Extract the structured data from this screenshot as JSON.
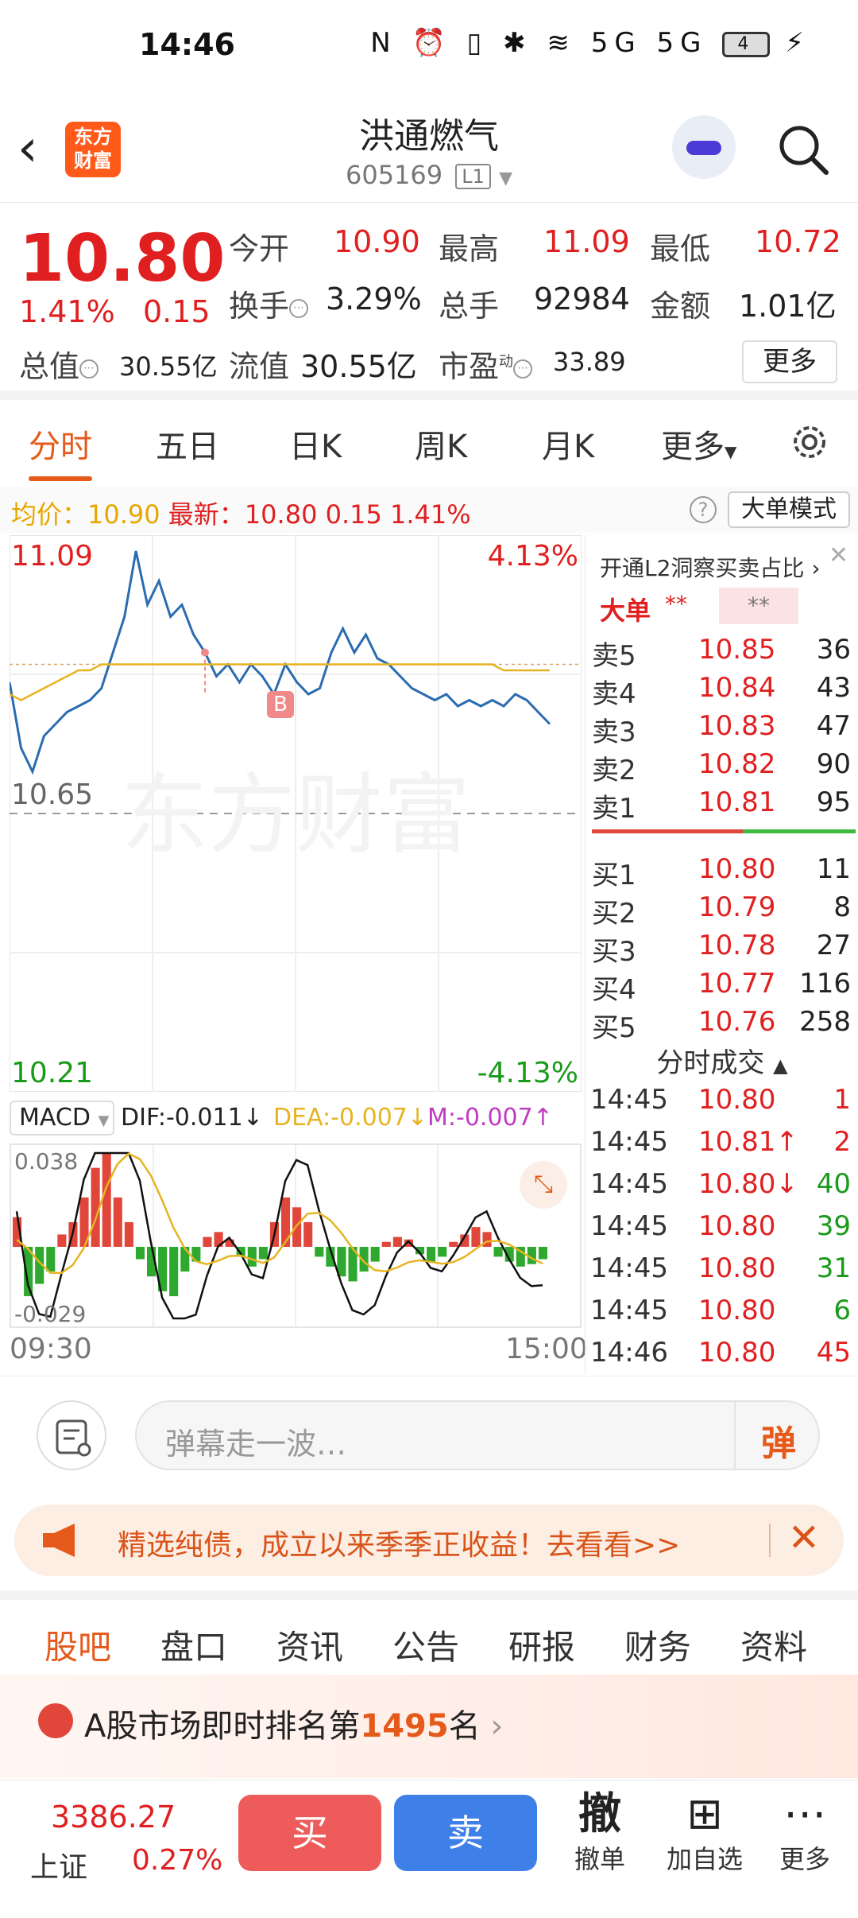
{
  "status": {
    "time": "14:46",
    "icons": "N ⏰ ▯ ✱ ≋ 5G 5G",
    "battery": "4"
  },
  "header": {
    "title": "洪通燃气",
    "code": "605169",
    "level": "L1",
    "logo": "东方财富"
  },
  "quote": {
    "price": "10.80",
    "pct": "1.41%",
    "chg": "0.15",
    "open_label": "今开",
    "open": "10.90",
    "high_label": "最高",
    "high": "11.09",
    "low_label": "最低",
    "low": "10.72",
    "turnover_label": "换手",
    "turnover": "3.29%",
    "volume_label": "总手",
    "volume": "92984",
    "amount_label": "金额",
    "amount": "1.01亿",
    "mktcap_label": "总值",
    "mktcap": "30.55亿",
    "float_label": "流值",
    "float": "30.55亿",
    "pe_label": "市盈",
    "pe_sup": "动",
    "pe": "33.89",
    "more": "更多"
  },
  "ktabs": [
    "分时",
    "五日",
    "日K",
    "周K",
    "月K",
    "更多"
  ],
  "infoline": {
    "avg_label": "均价：",
    "avg": "10.90",
    "last_label": "最新：",
    "last": "10.80",
    "chg": "0.15",
    "pct": "1.41%",
    "bigmode": "大单模式",
    "help": "?"
  },
  "chart_data": {
    "type": "line",
    "series": [
      {
        "name": "price",
        "values": [
          10.87,
          10.76,
          10.72,
          10.78,
          10.8,
          10.82,
          10.83,
          10.84,
          10.86,
          10.92,
          10.98,
          11.09,
          11.0,
          11.04,
          10.98,
          11.0,
          10.95,
          10.92,
          10.88,
          10.9,
          10.87,
          10.9,
          10.88,
          10.85,
          10.9,
          10.87,
          10.85,
          10.86,
          10.92,
          10.96,
          10.92,
          10.95,
          10.91,
          10.9,
          10.88,
          10.86,
          10.85,
          10.84,
          10.85,
          10.83,
          10.84,
          10.83,
          10.84,
          10.83,
          10.85,
          10.84,
          10.82,
          10.8
        ]
      },
      {
        "name": "avg",
        "values": [
          10.85,
          10.84,
          10.85,
          10.86,
          10.87,
          10.88,
          10.89,
          10.89,
          10.9,
          10.9,
          10.9,
          10.9,
          10.9,
          10.9,
          10.9,
          10.9,
          10.9,
          10.9,
          10.9,
          10.9,
          10.9,
          10.9,
          10.9,
          10.9,
          10.9,
          10.9,
          10.9,
          10.9,
          10.9,
          10.9,
          10.9,
          10.9,
          10.9,
          10.9,
          10.9,
          10.9,
          10.9,
          10.9,
          10.9,
          10.9,
          10.9,
          10.9,
          10.9,
          10.89,
          10.89,
          10.89,
          10.89,
          10.89
        ]
      }
    ],
    "ylim": [
      10.21,
      11.09
    ],
    "y_top": "11.09",
    "y_mid": "10.65",
    "y_bottom": "10.21",
    "pct_top": "4.13%",
    "pct_bottom": "-4.13%",
    "x_start": "09:30",
    "x_end": "15:00",
    "marker": "B",
    "macd": {
      "label": "MACD",
      "dif": "DIF:-0.011",
      "dea": "DEA:-0.007",
      "m": "M:-0.007",
      "ymax": "0.038",
      "ymin": "-0.029",
      "histogram": [
        0.012,
        -0.02,
        -0.015,
        -0.01,
        0.005,
        0.01,
        0.02,
        0.032,
        0.038,
        0.02,
        0.01,
        -0.005,
        -0.012,
        -0.018,
        -0.02,
        -0.01,
        -0.006,
        0.004,
        0.006,
        0.003,
        -0.004,
        -0.008,
        -0.005,
        0.01,
        0.02,
        0.016,
        0.01,
        -0.004,
        -0.008,
        -0.012,
        -0.014,
        -0.01,
        -0.006,
        0.002,
        0.004,
        0.003,
        -0.003,
        -0.006,
        -0.004,
        0.002,
        0.005,
        0.008,
        0.006,
        -0.004,
        -0.006,
        -0.008,
        -0.007,
        -0.005
      ]
    }
  },
  "book": {
    "head": "开通L2洞察买卖占比",
    "dadan": "大单",
    "stars": "**",
    "asks": [
      {
        "label": "卖5",
        "price": "10.85",
        "vol": "36"
      },
      {
        "label": "卖4",
        "price": "10.84",
        "vol": "43"
      },
      {
        "label": "卖3",
        "price": "10.83",
        "vol": "47"
      },
      {
        "label": "卖2",
        "price": "10.82",
        "vol": "90"
      },
      {
        "label": "卖1",
        "price": "10.81",
        "vol": "95"
      }
    ],
    "bids": [
      {
        "label": "买1",
        "price": "10.80",
        "vol": "11"
      },
      {
        "label": "买2",
        "price": "10.79",
        "vol": "8"
      },
      {
        "label": "买3",
        "price": "10.78",
        "vol": "27"
      },
      {
        "label": "买4",
        "price": "10.77",
        "vol": "116"
      },
      {
        "label": "买5",
        "price": "10.76",
        "vol": "258"
      }
    ],
    "trade_head": "分时成交",
    "trades": [
      {
        "time": "14:45",
        "price": "10.80",
        "vol": "1",
        "dir": "",
        "vc": "red"
      },
      {
        "time": "14:45",
        "price": "10.81↑",
        "vol": "2",
        "dir": "up",
        "vc": "red"
      },
      {
        "time": "14:45",
        "price": "10.80↓",
        "vol": "40",
        "dir": "down",
        "vc": "green"
      },
      {
        "time": "14:45",
        "price": "10.80",
        "vol": "39",
        "dir": "",
        "vc": "green"
      },
      {
        "time": "14:45",
        "price": "10.80",
        "vol": "31",
        "dir": "",
        "vc": "green"
      },
      {
        "time": "14:45",
        "price": "10.80",
        "vol": "6",
        "dir": "",
        "vc": "green"
      },
      {
        "time": "14:46",
        "price": "10.80",
        "vol": "45",
        "dir": "",
        "vc": "red"
      }
    ]
  },
  "comment": {
    "placeholder": "弹幕走一波…",
    "dan": "弹"
  },
  "promo": {
    "text": "精选纯债，成立以来季季正收益！去看看>>"
  },
  "btabs": [
    "股吧",
    "盘口",
    "资讯",
    "公告",
    "研报",
    "财务",
    "资料"
  ],
  "rank": {
    "prefix": "A股市场即时排名第",
    "num": "1495",
    "suffix": "名"
  },
  "bottom": {
    "index_val": "3386.27",
    "index_name": "上证",
    "index_pct": "0.27%",
    "buy": "买",
    "sell": "卖",
    "cancel_icon": "撤",
    "cancel": "撤单",
    "add": "加自选",
    "more": "更多"
  },
  "colors": {
    "up": "#e02020",
    "down": "#1a9a1a",
    "accent": "#e55a1a",
    "price_line": "#2b6cb0",
    "avg_line": "#e6b422"
  }
}
